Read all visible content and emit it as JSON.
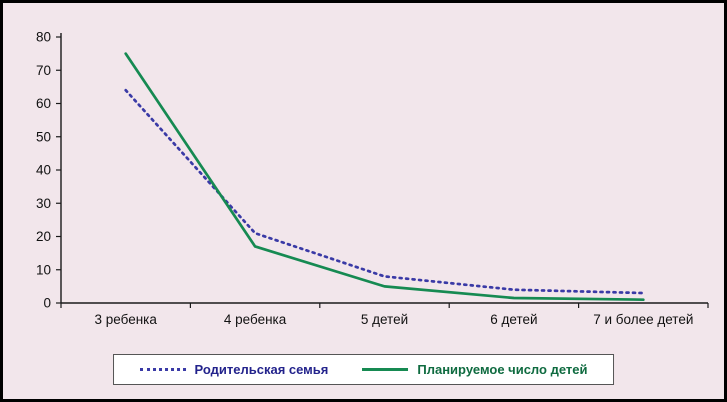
{
  "chart_data": {
    "type": "line",
    "title": "",
    "xlabel": "",
    "ylabel": "",
    "categories": [
      "3 ребенка",
      "4 ребенка",
      "5 детей",
      "6 детей",
      "7 и более детей"
    ],
    "series": [
      {
        "name": "Родительская семья",
        "values": [
          64,
          21,
          8,
          4,
          3
        ],
        "color": "#3a3aa6",
        "style": "dotted"
      },
      {
        "name": "Планируемое число детей",
        "values": [
          75,
          17,
          5,
          1.5,
          1
        ],
        "color": "#168a52",
        "style": "solid"
      }
    ],
    "ylim": [
      0,
      80
    ],
    "ytick_step": 10,
    "yticks": [
      "0",
      "10",
      "20",
      "30",
      "40",
      "50",
      "60",
      "70",
      "80"
    ],
    "grid": false,
    "legend_position": "bottom"
  },
  "colors": {
    "background": "#f2e6eb",
    "frame_border": "#000000",
    "axis": "#1a1a1a",
    "tick_text": "#111111",
    "legend_background": "#ffffff",
    "legend_border": "#555555"
  }
}
